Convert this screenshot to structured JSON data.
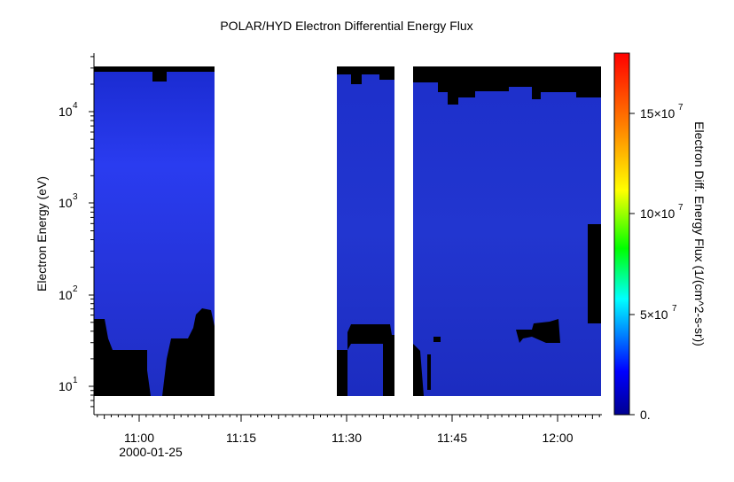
{
  "chart_data": {
    "type": "heatmap",
    "title": "POLAR/HYD  Electron Differential Energy Flux",
    "ylabel": "Electron Energy (eV)",
    "colorbar_label": "Electron Diff. Energy Flux (1/(cm^2-s-sr))",
    "x_ticks": [
      "11:00",
      "11:15",
      "11:30",
      "11:45",
      "12:00"
    ],
    "x_date_label": "2000-01-25",
    "y_scale": "log",
    "y_ticks": [
      {
        "base": "10",
        "exp": "1",
        "value": 10
      },
      {
        "base": "10",
        "exp": "2",
        "value": 100
      },
      {
        "base": "10",
        "exp": "3",
        "value": 1000
      },
      {
        "base": "10",
        "exp": "4",
        "value": 10000
      }
    ],
    "colorbar_ticks": [
      {
        "mant": "0.",
        "exp": "",
        "value": 0
      },
      {
        "mant": "5×10",
        "exp": "7",
        "value": 50000000
      },
      {
        "mant": "10×10",
        "exp": "7",
        "value": 100000000
      },
      {
        "mant": "15×10",
        "exp": "7",
        "value": 150000000
      }
    ],
    "colorbar_range": [
      0,
      180000000
    ],
    "colormap": "rainbow (dark blue → blue → cyan → green → yellow → orange → red)",
    "data_blocks": [
      {
        "start": "10:55",
        "end": "11:11",
        "fill": "#1f31d8",
        "background_gaps": "black (no data) at highest and lowest energies"
      },
      {
        "start": "11:28",
        "end": "11:37",
        "fill": "#2035c8",
        "background_gaps": "black (no data) at highest and lowest energies"
      },
      {
        "start": "11:39",
        "end": "12:06",
        "fill": "#2238c2",
        "background_gaps": "black (no data) at highest and lowest energies"
      }
    ],
    "grid": false
  }
}
